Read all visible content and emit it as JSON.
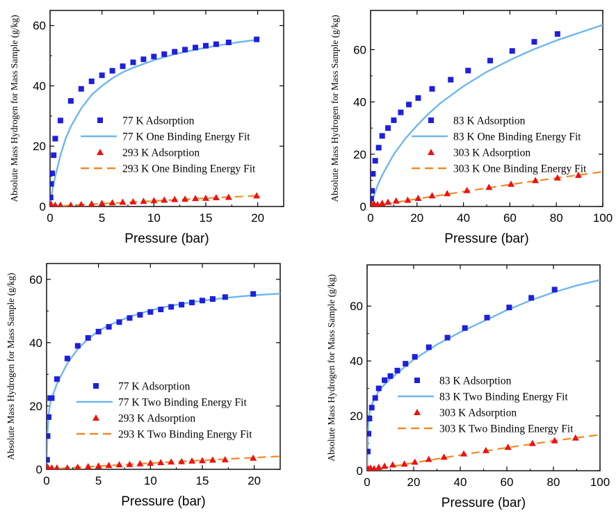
{
  "colors": {
    "adsorption_cold": "#1f1fdc",
    "fit_cold": "#6cb7f0",
    "adsorption_warm": "#ee1111",
    "fit_warm": "#f08a22",
    "axis": "#000000"
  },
  "chart_data": [
    {
      "type": "scatter",
      "xlabel": "Pressure (bar)",
      "ylabel": "Absolute Mass Hydrogen for Mass Sample (g/kg)",
      "xlim": [
        0,
        22.5
      ],
      "ylim": [
        0,
        65
      ],
      "xticks": [
        0,
        5,
        10,
        15,
        20
      ],
      "yticks": [
        0,
        20,
        40,
        60
      ],
      "grid": false,
      "legend_position": "middle-right",
      "series": [
        {
          "name": "77 K Adsorption",
          "kind": "markers",
          "marker": "square",
          "color": "#1f1fdc",
          "x": [
            0.05,
            0.1,
            0.2,
            0.35,
            0.5,
            1,
            2,
            3,
            4,
            5,
            6,
            7,
            8,
            9,
            10,
            11,
            12,
            13,
            14,
            15,
            16,
            17.2,
            19.9
          ],
          "y": [
            3,
            7.5,
            11,
            17,
            22.5,
            28.5,
            35,
            39,
            41.5,
            43.5,
            45,
            46.5,
            47.8,
            48.8,
            49.7,
            50.5,
            51.3,
            52,
            52.7,
            53.3,
            53.8,
            54.4,
            55.4
          ]
        },
        {
          "name": "77 K One Binding Energy Fit",
          "kind": "line",
          "style": "solid",
          "color": "#6cb7f0",
          "x": [
            0,
            0.25,
            0.5,
            1,
            1.5,
            2,
            3,
            4,
            5,
            6,
            7,
            8,
            10,
            12,
            14,
            16,
            18,
            20
          ],
          "y": [
            0,
            6,
            10,
            17,
            22.5,
            26.5,
            32.5,
            37,
            40,
            42.5,
            44.5,
            46,
            48.5,
            50.5,
            52,
            53.3,
            54.4,
            55.3
          ]
        },
        {
          "name": "293 K Adsorption",
          "kind": "markers",
          "marker": "triangle",
          "color": "#ee1111",
          "x": [
            0.1,
            0.5,
            1,
            2,
            3,
            4,
            5,
            6,
            7,
            8,
            9,
            10,
            11,
            12,
            13,
            14,
            15,
            16,
            17.2,
            19.9
          ],
          "y": [
            0.8,
            0.5,
            0.5,
            0.5,
            0.7,
            0.9,
            1.1,
            1.3,
            1.5,
            1.6,
            1.8,
            2.0,
            2.2,
            2.4,
            2.5,
            2.7,
            2.8,
            3.0,
            3.1,
            3.6
          ]
        },
        {
          "name": "293 K One Binding Energy Fit",
          "kind": "line",
          "style": "dashed",
          "color": "#f08a22",
          "x": [
            0,
            5,
            10,
            15,
            20
          ],
          "y": [
            0,
            0.95,
            1.85,
            2.75,
            3.6
          ]
        }
      ]
    },
    {
      "type": "scatter",
      "xlabel": "Pressure (bar)",
      "ylabel": "Absolute Mass Hydrogen for Mass Sample (g/kg)",
      "xlim": [
        0,
        100
      ],
      "ylim": [
        0,
        75
      ],
      "xticks": [
        0,
        20,
        40,
        60,
        80,
        100
      ],
      "yticks": [
        0,
        20,
        40,
        60
      ],
      "grid": false,
      "legend_position": "middle-right",
      "series": [
        {
          "name": "83 K Adsorption",
          "kind": "markers",
          "marker": "square",
          "color": "#1f1fdc",
          "x": [
            0.3,
            0.6,
            1,
            2,
            3.5,
            5,
            7.5,
            10,
            13,
            16.5,
            20.5,
            26.5,
            34.5,
            42,
            51.5,
            61,
            70.5,
            80.5
          ],
          "y": [
            3,
            6,
            12.5,
            17.5,
            22.5,
            27,
            30,
            33,
            36,
            39,
            41.5,
            45,
            48.5,
            52,
            55.8,
            59.5,
            63,
            66
          ]
        },
        {
          "name": "83 K One Binding Energy Fit",
          "kind": "line",
          "style": "solid",
          "color": "#6cb7f0",
          "x": [
            0,
            1,
            3,
            5,
            10,
            15,
            20,
            25,
            30,
            40,
            50,
            60,
            70,
            80,
            90,
            100
          ],
          "y": [
            0,
            3,
            8,
            12,
            20,
            26,
            31,
            35.5,
            39.5,
            46,
            51.5,
            56,
            60,
            63.5,
            66.5,
            69.5
          ]
        },
        {
          "name": "303 K Adsorption",
          "kind": "markers",
          "marker": "triangle",
          "color": "#ee1111",
          "x": [
            0.5,
            1.5,
            3,
            5,
            7.5,
            11,
            16,
            20.5,
            26.5,
            33,
            41.5,
            51,
            60.5,
            71,
            80.5,
            89.5
          ],
          "y": [
            0.8,
            1,
            0.8,
            1.3,
            1.7,
            2.2,
            2.5,
            3.2,
            4.2,
            5,
            6.2,
            7.4,
            8.6,
            10,
            11,
            12
          ]
        },
        {
          "name": "303 K One Binding Energy Fit",
          "kind": "line",
          "style": "dashed",
          "color": "#f08a22",
          "x": [
            0,
            20,
            40,
            60,
            80,
            100
          ],
          "y": [
            0,
            2.9,
            5.7,
            8.4,
            10.9,
            13.3
          ]
        }
      ]
    },
    {
      "type": "scatter",
      "xlabel": "Pressure (bar)",
      "ylabel": "Absolute Mass Hydrogen for Mass Sample (g/kg)",
      "xlim": [
        0,
        22.5
      ],
      "ylim": [
        0,
        65
      ],
      "xticks": [
        0,
        5,
        10,
        15,
        20
      ],
      "yticks": [
        0,
        20,
        40,
        60
      ],
      "grid": false,
      "legend_position": "middle-right",
      "series": [
        {
          "name": "77 K Adsorption",
          "kind": "markers",
          "marker": "square",
          "color": "#1f1fdc",
          "x": [
            0.05,
            0.1,
            0.2,
            0.35,
            0.5,
            1,
            2,
            3,
            4,
            5,
            6,
            7,
            8,
            9,
            10,
            11,
            12,
            13,
            14,
            15,
            16,
            17.2,
            19.9
          ],
          "y": [
            3,
            10.5,
            16.5,
            22.5,
            22.5,
            28.5,
            35,
            39,
            41.5,
            43.5,
            45,
            46.5,
            47.8,
            48.8,
            49.7,
            50.5,
            51.3,
            52,
            52.7,
            53.3,
            53.8,
            54.4,
            55.4
          ]
        },
        {
          "name": "77 K Two Binding Energy Fit",
          "kind": "line",
          "style": "solid",
          "color": "#6cb7f0",
          "x": [
            0,
            0.05,
            0.1,
            0.2,
            0.35,
            0.5,
            1,
            2,
            3,
            4,
            5,
            6,
            8,
            10,
            12,
            14,
            16,
            18,
            20,
            22.5
          ],
          "y": [
            0,
            7,
            12,
            17.5,
            21,
            22.5,
            27,
            33.5,
            38,
            41.2,
            43.7,
            45.5,
            48.2,
            50.2,
            51.7,
            52.8,
            53.7,
            54.4,
            55,
            55.5
          ]
        },
        {
          "name": "293 K Adsorption",
          "kind": "markers",
          "marker": "triangle",
          "color": "#ee1111",
          "x": [
            0.1,
            0.5,
            1,
            2,
            3,
            4,
            5,
            6,
            7,
            8,
            9,
            10,
            11,
            12,
            13,
            14,
            15,
            16,
            17.2,
            19.9
          ],
          "y": [
            0.8,
            0.5,
            0.5,
            0.5,
            0.7,
            0.9,
            1.1,
            1.3,
            1.5,
            1.6,
            1.8,
            2.0,
            2.2,
            2.4,
            2.5,
            2.7,
            2.8,
            3.0,
            3.1,
            3.6
          ]
        },
        {
          "name": "293 K Two Binding Energy Fit",
          "kind": "line",
          "style": "dashed",
          "color": "#f08a22",
          "x": [
            0,
            5,
            10,
            15,
            20,
            22.5
          ],
          "y": [
            0,
            1.0,
            1.95,
            2.85,
            3.7,
            4.1
          ]
        }
      ]
    },
    {
      "type": "scatter",
      "xlabel": "Pressure (bar)",
      "ylabel": "Absolute Mass Hydrogen for Mass Sample (g/kg)",
      "xlim": [
        0,
        100
      ],
      "ylim": [
        0,
        75
      ],
      "xticks": [
        0,
        20,
        40,
        60,
        80,
        100
      ],
      "yticks": [
        0,
        20,
        40,
        60
      ],
      "grid": false,
      "legend_position": "middle-right",
      "series": [
        {
          "name": "83 K Adsorption",
          "kind": "markers",
          "marker": "square",
          "color": "#1f1fdc",
          "x": [
            0.3,
            0.6,
            1,
            2,
            3.5,
            5,
            7.5,
            10,
            13,
            16.5,
            20.5,
            26.5,
            34.5,
            42,
            51.5,
            61,
            70.5,
            80.5
          ],
          "y": [
            7,
            13.5,
            19,
            23,
            26.5,
            30,
            33,
            34.5,
            36.5,
            39,
            41.5,
            45,
            48.5,
            52,
            55.8,
            59.5,
            63,
            66
          ]
        },
        {
          "name": "83 K Two Binding Energy Fit",
          "kind": "line",
          "style": "solid",
          "color": "#6cb7f0",
          "x": [
            0,
            0.2,
            0.5,
            1,
            2,
            3,
            5,
            7.5,
            10,
            15,
            20,
            30,
            40,
            50,
            60,
            70,
            80,
            90,
            100
          ],
          "y": [
            0,
            9,
            17,
            21,
            24,
            26,
            29,
            31.5,
            33.5,
            37,
            40.5,
            46,
            50.5,
            54.5,
            58.5,
            62,
            65,
            67.5,
            69.5
          ]
        },
        {
          "name": "303 K Adsorption",
          "kind": "markers",
          "marker": "triangle",
          "color": "#ee1111",
          "x": [
            0.5,
            1.5,
            3,
            5,
            7.5,
            11,
            16,
            20.5,
            26.5,
            33,
            41.5,
            51,
            60.5,
            71,
            80.5,
            89.5
          ],
          "y": [
            0.8,
            1,
            0.8,
            1.3,
            1.7,
            2.2,
            2.5,
            3.2,
            4.2,
            5,
            6.2,
            7.4,
            8.6,
            10,
            11,
            12
          ]
        },
        {
          "name": "303 K Two Binding Energy Fit",
          "kind": "line",
          "style": "dashed",
          "color": "#f08a22",
          "x": [
            0,
            20,
            40,
            60,
            80,
            100
          ],
          "y": [
            0,
            2.9,
            5.7,
            8.4,
            10.9,
            13.1
          ]
        }
      ]
    }
  ]
}
